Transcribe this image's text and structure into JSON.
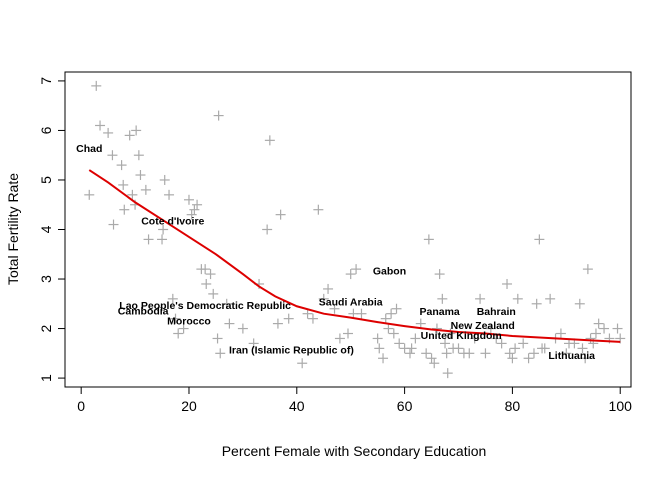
{
  "chart_data": {
    "type": "scatter",
    "xlabel": "Percent Female with Secondary Education",
    "ylabel": "Total Fertility Rate",
    "xlim": [
      -3,
      102
    ],
    "ylim": [
      0.82,
      7.18
    ],
    "xticks": [
      0,
      20,
      40,
      60,
      80,
      100
    ],
    "yticks": [
      1,
      2,
      3,
      4,
      5,
      6,
      7
    ],
    "grid": false,
    "marker_color": "#aaaaaa",
    "line_color": "#dd0000",
    "points": [
      [
        1.5,
        4.7
      ],
      [
        2.8,
        6.9
      ],
      [
        3.5,
        6.1
      ],
      [
        5.0,
        5.95
      ],
      [
        5.8,
        5.5
      ],
      [
        6.0,
        4.1
      ],
      [
        7.5,
        5.3
      ],
      [
        7.8,
        4.9
      ],
      [
        8.0,
        4.4
      ],
      [
        9.0,
        5.9
      ],
      [
        9.5,
        4.7
      ],
      [
        10.0,
        4.5
      ],
      [
        10.2,
        6.0
      ],
      [
        10.7,
        5.5
      ],
      [
        11.0,
        5.1
      ],
      [
        12.0,
        4.8
      ],
      [
        12.5,
        3.8
      ],
      [
        15.0,
        3.8
      ],
      [
        15.2,
        4.0
      ],
      [
        15.5,
        5.0
      ],
      [
        16.3,
        4.7
      ],
      [
        17.0,
        2.6
      ],
      [
        17.5,
        2.2
      ],
      [
        18.0,
        1.9
      ],
      [
        19.0,
        2.0
      ],
      [
        20.0,
        4.6
      ],
      [
        20.5,
        4.3
      ],
      [
        21.0,
        4.4
      ],
      [
        21.5,
        4.5
      ],
      [
        22.3,
        3.2
      ],
      [
        23.0,
        3.2
      ],
      [
        23.2,
        2.9
      ],
      [
        24.0,
        3.1
      ],
      [
        24.5,
        2.7
      ],
      [
        25.3,
        1.8
      ],
      [
        25.5,
        6.3
      ],
      [
        25.8,
        1.5
      ],
      [
        27.0,
        2.5
      ],
      [
        27.5,
        2.1
      ],
      [
        30.0,
        2.0
      ],
      [
        32.0,
        1.7
      ],
      [
        33.0,
        2.9
      ],
      [
        34.5,
        4.0
      ],
      [
        35.0,
        5.8
      ],
      [
        36.5,
        2.1
      ],
      [
        37.0,
        4.3
      ],
      [
        38.5,
        2.2
      ],
      [
        41.0,
        1.3
      ],
      [
        42.0,
        2.3
      ],
      [
        43.0,
        2.2
      ],
      [
        44.0,
        4.4
      ],
      [
        45.0,
        2.6
      ],
      [
        45.8,
        2.8
      ],
      [
        47.0,
        2.4
      ],
      [
        48.0,
        1.8
      ],
      [
        49.5,
        1.9
      ],
      [
        50.0,
        3.1
      ],
      [
        50.5,
        2.3
      ],
      [
        51.0,
        3.2
      ],
      [
        52.0,
        2.3
      ],
      [
        55.0,
        1.8
      ],
      [
        55.3,
        1.6
      ],
      [
        56.0,
        1.4
      ],
      [
        56.5,
        2.2
      ],
      [
        57.0,
        2.0
      ],
      [
        57.5,
        2.3
      ],
      [
        58.0,
        1.9
      ],
      [
        58.5,
        2.4
      ],
      [
        59.0,
        1.7
      ],
      [
        60.0,
        1.6
      ],
      [
        61.0,
        1.5
      ],
      [
        61.3,
        1.6
      ],
      [
        62.0,
        1.8
      ],
      [
        63.0,
        2.1
      ],
      [
        64.0,
        1.5
      ],
      [
        64.5,
        3.8
      ],
      [
        65.0,
        1.4
      ],
      [
        65.5,
        1.3
      ],
      [
        66.0,
        2.0
      ],
      [
        66.5,
        3.1
      ],
      [
        67.0,
        2.6
      ],
      [
        67.5,
        1.7
      ],
      [
        67.8,
        1.5
      ],
      [
        68.0,
        1.1
      ],
      [
        68.5,
        1.9
      ],
      [
        69.0,
        1.6
      ],
      [
        70.0,
        1.6
      ],
      [
        71.0,
        1.5
      ],
      [
        72.0,
        1.5
      ],
      [
        73.0,
        1.8
      ],
      [
        74.0,
        2.6
      ],
      [
        75.0,
        1.5
      ],
      [
        76.0,
        2.0
      ],
      [
        77.0,
        1.8
      ],
      [
        78.0,
        1.7
      ],
      [
        79.0,
        2.9
      ],
      [
        79.5,
        1.5
      ],
      [
        80.0,
        1.4
      ],
      [
        80.5,
        1.6
      ],
      [
        81.0,
        2.6
      ],
      [
        82.0,
        1.7
      ],
      [
        83.0,
        1.4
      ],
      [
        84.0,
        1.5
      ],
      [
        84.5,
        2.5
      ],
      [
        85.0,
        3.8
      ],
      [
        85.5,
        1.6
      ],
      [
        86.0,
        1.6
      ],
      [
        87.0,
        2.6
      ],
      [
        88.0,
        1.8
      ],
      [
        89.0,
        1.9
      ],
      [
        90.0,
        1.5
      ],
      [
        90.5,
        1.7
      ],
      [
        91.5,
        1.7
      ],
      [
        92.5,
        2.5
      ],
      [
        93.0,
        1.6
      ],
      [
        93.5,
        1.4
      ],
      [
        94.0,
        3.2
      ],
      [
        94.5,
        1.8
      ],
      [
        95.0,
        1.7
      ],
      [
        95.5,
        1.9
      ],
      [
        96.0,
        2.1
      ],
      [
        97.0,
        2.0
      ],
      [
        98.0,
        1.8
      ],
      [
        99.5,
        2.0
      ],
      [
        100.0,
        1.8
      ]
    ],
    "trend_line": [
      [
        1.5,
        5.2
      ],
      [
        5,
        4.95
      ],
      [
        10,
        4.55
      ],
      [
        15,
        4.2
      ],
      [
        20,
        3.85
      ],
      [
        25,
        3.5
      ],
      [
        30,
        3.1
      ],
      [
        33,
        2.85
      ],
      [
        36,
        2.65
      ],
      [
        40,
        2.45
      ],
      [
        45,
        2.3
      ],
      [
        50,
        2.22
      ],
      [
        55,
        2.13
      ],
      [
        60,
        2.05
      ],
      [
        65,
        1.98
      ],
      [
        70,
        1.93
      ],
      [
        75,
        1.9
      ],
      [
        80,
        1.85
      ],
      [
        85,
        1.82
      ],
      [
        90,
        1.79
      ],
      [
        95,
        1.76
      ],
      [
        100,
        1.73
      ]
    ],
    "annotations": [
      {
        "text": "Chad",
        "x": 1.5,
        "y": 5.65
      },
      {
        "text": "Cote d'Ivoire",
        "x": 17.0,
        "y": 4.18
      },
      {
        "text": "Gabon",
        "x": 57.2,
        "y": 3.17
      },
      {
        "text": "Lao People's Democratic Republic",
        "x": 23.0,
        "y": 2.48
      },
      {
        "text": "Saudi Arabia",
        "x": 50.0,
        "y": 2.55
      },
      {
        "text": "Cambodia",
        "x": 11.5,
        "y": 2.36
      },
      {
        "text": "Panama",
        "x": 66.5,
        "y": 2.35
      },
      {
        "text": "Bahrain",
        "x": 77.0,
        "y": 2.35
      },
      {
        "text": "Morocco",
        "x": 20.0,
        "y": 2.16
      },
      {
        "text": "New Zealand",
        "x": 74.5,
        "y": 2.07
      },
      {
        "text": "United Kingdom",
        "x": 70.5,
        "y": 1.87
      },
      {
        "text": "Iran (Islamic Republic of)",
        "x": 39.0,
        "y": 1.58
      },
      {
        "text": "Lithuania",
        "x": 91.0,
        "y": 1.47
      }
    ]
  }
}
